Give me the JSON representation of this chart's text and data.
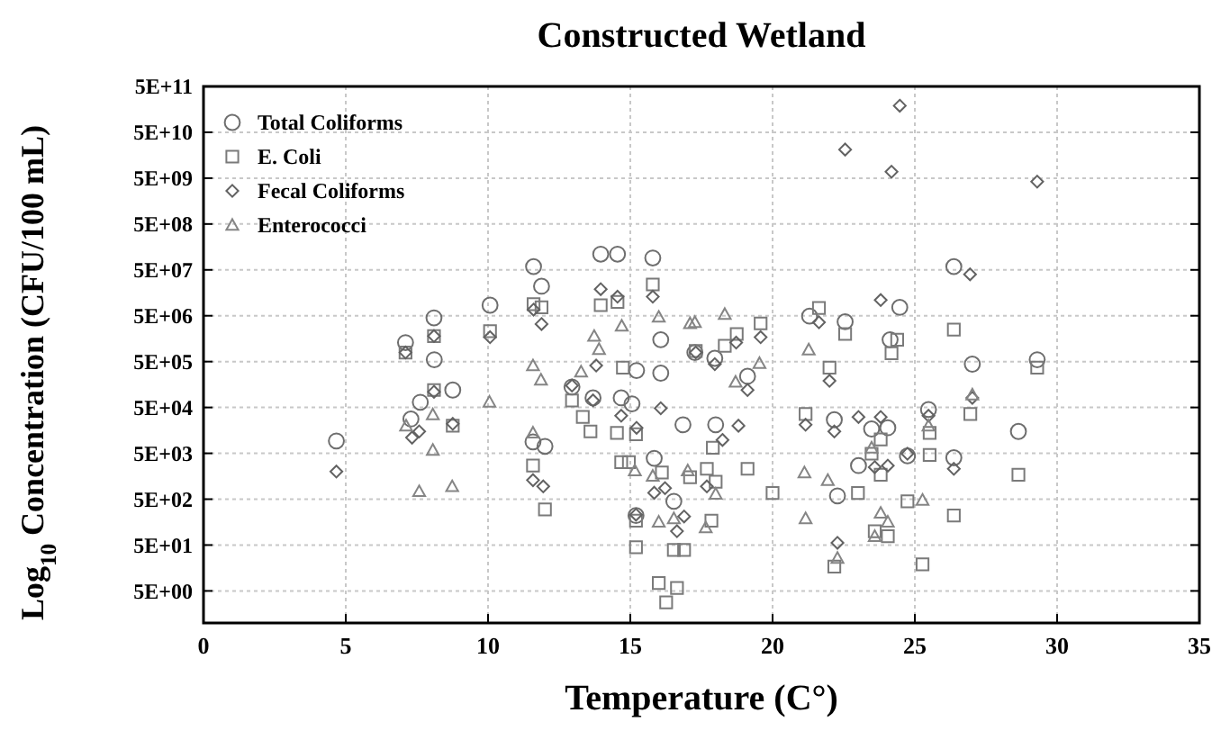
{
  "chart_data": {
    "type": "scatter",
    "title": "Constructed Wetland",
    "xlabel": "Temperature (C°)",
    "ylabel": "Log$_{10}$ Concentration (CFU/100 mL)",
    "log": "y",
    "grid": true,
    "legend": "top left",
    "xlim": [
      0,
      35
    ],
    "xticks": [
      0,
      5,
      10,
      15,
      20,
      25,
      30,
      35
    ],
    "ylim": [
      1,
      500000000000
    ],
    "yticks": [
      {
        "value": 5,
        "label": "5E+00"
      },
      {
        "value": 50,
        "label": "5E+01"
      },
      {
        "value": 500,
        "label": "5E+02"
      },
      {
        "value": 5000,
        "label": "5E+03"
      },
      {
        "value": 50000,
        "label": "5E+04"
      },
      {
        "value": 500000,
        "label": "5E+05"
      },
      {
        "value": 5000000,
        "label": "5E+06"
      },
      {
        "value": 50000000,
        "label": "5E+07"
      },
      {
        "value": 500000000,
        "label": "5E+08"
      },
      {
        "value": 5000000000,
        "label": "5E+09"
      },
      {
        "value": 50000000000,
        "label": "5E+10"
      },
      {
        "value": 500000000000,
        "label": "5E+11"
      }
    ],
    "series": [
      {
        "name": "Total Coliforms",
        "color": "#6e6e6e",
        "marker": "circle",
        "x": [
          4.67,
          7.1,
          7.29,
          7.62,
          8.1,
          8.11,
          8.76,
          10.07,
          11.58,
          11.6,
          11.88,
          12.0,
          12.95,
          13.69,
          13.96,
          14.55,
          14.68,
          15.06,
          15.2,
          15.22,
          15.79,
          15.84,
          16.07,
          16.07,
          16.53,
          16.85,
          17.27,
          17.97,
          18.0,
          19.12,
          21.3,
          22.17,
          22.28,
          22.55,
          23.02,
          23.48,
          24.05,
          24.13,
          24.47,
          24.74,
          25.48,
          26.37,
          26.37,
          27.02,
          28.64,
          29.3
        ],
        "values": [
          9300,
          1300000,
          28000,
          65000,
          4500000,
          550000,
          120000,
          8500000,
          8900,
          59000000,
          22000000,
          7100,
          140000,
          81000,
          110000000,
          110000000,
          81000,
          60000,
          220,
          320000,
          91000000,
          3900,
          1500000,
          280000,
          450,
          21000,
          790000,
          590000,
          21000,
          240000,
          4900000,
          27000,
          590,
          3700000,
          2700,
          17000,
          18000,
          1500000,
          7600000,
          4400,
          45000,
          59000000,
          4000,
          440000,
          15000,
          550000
        ]
      },
      {
        "name": "E. Coli",
        "color": "#7a7a7a",
        "marker": "square",
        "x": [
          7.1,
          8.1,
          8.1,
          8.76,
          10.07,
          11.58,
          11.6,
          11.88,
          12.0,
          12.95,
          13.33,
          13.6,
          13.96,
          14.53,
          14.55,
          14.68,
          14.74,
          14.95,
          15.2,
          15.2,
          15.2,
          15.79,
          16.0,
          16.11,
          16.26,
          16.53,
          16.64,
          16.89,
          17.1,
          17.3,
          17.69,
          17.85,
          17.9,
          18.0,
          18.32,
          18.74,
          19.12,
          19.58,
          20.0,
          21.16,
          21.63,
          22.0,
          22.17,
          22.55,
          23.0,
          23.48,
          23.59,
          23.8,
          23.8,
          24.05,
          24.18,
          24.38,
          24.74,
          25.27,
          25.52,
          25.52,
          26.37,
          26.37,
          26.95,
          28.64,
          29.3
        ],
        "values": [
          790000,
          1800000,
          120000,
          20000,
          2300000,
          2700,
          8900000,
          7600000,
          300,
          71000,
          31000,
          15000,
          8500000,
          14000,
          10000000,
          3200,
          370000,
          3200,
          13000,
          170,
          45,
          24000000,
          7.4,
          1900,
          2.8,
          39,
          5.8,
          39,
          1500,
          850000,
          2300,
          170,
          6600,
          1200,
          1100000,
          2000000,
          2300,
          3400000,
          680,
          36000,
          7400000,
          370000,
          17,
          2000000,
          680,
          4900,
          100,
          10000,
          1700,
          78,
          760000,
          1500000,
          450,
          19,
          4600,
          14000,
          2500000,
          220,
          36000,
          1700,
          370000
        ]
      },
      {
        "name": "Fecal Coliforms",
        "color": "#626262",
        "marker": "diamond",
        "x": [
          4.67,
          7.1,
          7.33,
          7.58,
          8.1,
          8.1,
          8.76,
          10.07,
          11.58,
          11.6,
          11.88,
          11.94,
          12.95,
          13.69,
          13.8,
          13.96,
          14.55,
          14.68,
          15.2,
          15.22,
          15.79,
          15.84,
          16.07,
          16.22,
          16.64,
          16.89,
          17.3,
          17.69,
          17.97,
          18.24,
          18.72,
          18.8,
          19.12,
          19.58,
          21.16,
          21.63,
          22.0,
          22.17,
          22.28,
          22.55,
          23.02,
          23.59,
          23.8,
          23.8,
          24.05,
          24.18,
          24.47,
          24.74,
          25.48,
          26.37,
          26.94,
          27.02,
          29.3
        ],
        "values": [
          2000,
          790000,
          11000,
          15000,
          1800000,
          110000,
          22000,
          1700000,
          1300,
          6800000,
          3300000,
          950,
          150000,
          71000,
          410000,
          19000000,
          13000000,
          33000,
          230,
          18000,
          13000000,
          690,
          48000,
          870,
          100,
          210,
          790000,
          950,
          440000,
          9800,
          1300000,
          20000,
          120000,
          1700000,
          21000,
          3600000,
          190000,
          15000,
          56,
          21000000000,
          31000,
          2500,
          11000000,
          31000,
          2700,
          6900000000,
          190000000000,
          4900,
          33000,
          2300,
          40000000,
          81000,
          4200000000
        ]
      },
      {
        "name": "Enterococci",
        "color": "#858585",
        "marker": "triangle",
        "x": [
          7.12,
          7.58,
          8.06,
          8.06,
          8.74,
          10.05,
          11.58,
          11.58,
          11.86,
          13.27,
          13.73,
          13.9,
          14.7,
          15.16,
          15.79,
          16.0,
          16.0,
          16.53,
          17.02,
          17.1,
          17.27,
          17.65,
          18.0,
          18.32,
          18.7,
          19.54,
          21.12,
          21.16,
          21.27,
          21.94,
          22.28,
          23.48,
          23.59,
          23.8,
          24.05,
          25.27,
          25.48,
          27.02
        ],
        "values": [
          20000,
          740,
          35000,
          5900,
          950,
          66000,
          14000,
          410000,
          200000,
          300000,
          1800000,
          930000,
          3000000,
          2100,
          1600,
          4700000,
          160,
          190,
          2100,
          3400000,
          3600000,
          120,
          650,
          5400000,
          180000,
          460000,
          1900,
          190,
          910000,
          1300,
          26,
          6600,
          78,
          250,
          160,
          480,
          20000,
          95000
        ]
      }
    ]
  }
}
